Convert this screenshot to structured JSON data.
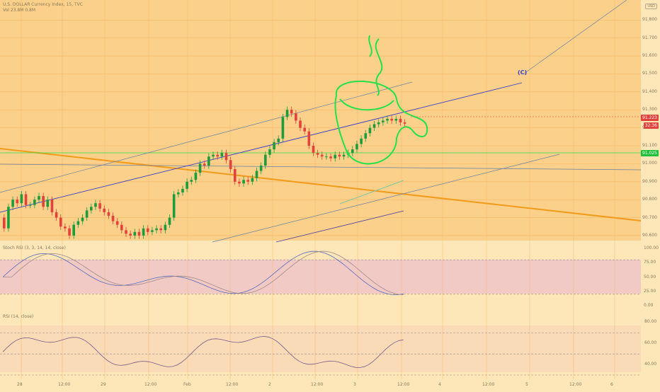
{
  "header": {
    "symbol_line": "U.S. DOLLAR Currency Index, 15, TVC",
    "volume_line": "Vol 23.8M 0.8M",
    "currency": "USD"
  },
  "price_axis": {
    "ticks": [
      "91.800",
      "91.700",
      "91.600",
      "91.500",
      "91.400",
      "91.300",
      "91.200",
      "91.100",
      "91.000",
      "90.900",
      "90.800",
      "90.700",
      "90.600"
    ],
    "current_price": "91.223",
    "countdown": "32:36",
    "level_marker": "91.025"
  },
  "stoch_pane": {
    "label": "Stoch RSI (3, 3, 14, 14, close)",
    "ticks": [
      "100.00",
      "75.00",
      "50.00",
      "25.00",
      "0.00"
    ]
  },
  "rsi_pane": {
    "label": "RSI (14, close)",
    "ticks": [
      "80.00",
      "60.00",
      "40.00"
    ]
  },
  "time_axis": {
    "ticks": [
      "28",
      "12:00",
      "29",
      "12:00",
      "Feb",
      "12:00",
      "2",
      "12:00",
      "3",
      "12:00",
      "4",
      "12:00",
      "5",
      "12:00",
      "6"
    ]
  },
  "annotations": {
    "wave_label": "(C)"
  },
  "colors": {
    "background": "#fde7b8",
    "panel": "#fbd08a",
    "up": "#1e9c3c",
    "down": "#e0423c",
    "highlight": "#26e04a",
    "current_tag": "#e0423c",
    "level_tag": "#22c03a",
    "trend_orange": "#f29a1a",
    "channel_blue": "#3b3bc9"
  },
  "chart_data": {
    "type": "candlestick",
    "x": [
      0,
      1,
      2,
      3,
      4,
      5,
      6,
      7,
      8,
      9,
      10,
      11,
      12,
      13,
      14,
      15,
      16,
      17,
      18,
      19,
      20,
      21,
      22,
      23,
      24,
      25,
      26,
      27,
      28,
      29,
      30,
      31,
      32,
      33,
      34,
      35,
      36,
      37,
      38,
      39,
      40,
      41,
      42,
      43,
      44,
      45,
      46,
      47,
      48,
      49,
      50,
      51,
      52,
      53,
      54,
      55,
      56,
      57,
      58,
      59,
      60,
      61,
      62,
      63,
      64,
      65,
      66,
      67,
      68,
      69,
      70,
      71,
      72,
      73,
      74,
      75,
      76,
      77,
      78,
      79,
      80,
      81,
      82,
      83,
      84,
      85,
      86,
      87,
      88,
      89,
      90,
      91,
      92
    ],
    "open": [
      90.7,
      90.64,
      90.76,
      90.8,
      90.78,
      90.83,
      90.77,
      90.77,
      90.8,
      90.82,
      90.76,
      90.8,
      90.73,
      90.7,
      90.65,
      90.64,
      90.6,
      90.66,
      90.68,
      90.7,
      90.74,
      90.76,
      90.78,
      90.75,
      90.73,
      90.71,
      90.68,
      90.66,
      90.63,
      90.61,
      90.6,
      90.62,
      90.6,
      90.64,
      90.62,
      90.63,
      90.64,
      90.63,
      90.66,
      90.7,
      90.83,
      90.84,
      90.86,
      90.9,
      90.91,
      90.95,
      91.0,
      90.99,
      91.04,
      91.05,
      91.04,
      91.06,
      91.02,
      90.97,
      90.9,
      90.89,
      90.91,
      90.9,
      90.92,
      90.96,
      90.99,
      91.05,
      91.08,
      91.12,
      91.14,
      91.26,
      91.3,
      91.28,
      91.24,
      91.2,
      91.18,
      91.1,
      91.06,
      91.05,
      91.04,
      91.04,
      91.03,
      91.05,
      91.04,
      91.05,
      91.06,
      91.08,
      91.11,
      91.14,
      91.17,
      91.2,
      91.22,
      91.23,
      91.24,
      91.25,
      91.24,
      91.25,
      91.23
    ],
    "close": [
      90.64,
      90.76,
      90.8,
      90.78,
      90.83,
      90.77,
      90.77,
      90.8,
      90.82,
      90.76,
      90.8,
      90.73,
      90.7,
      90.65,
      90.64,
      90.6,
      90.66,
      90.68,
      90.7,
      90.74,
      90.76,
      90.78,
      90.75,
      90.73,
      90.71,
      90.68,
      90.66,
      90.63,
      90.61,
      90.6,
      90.62,
      90.6,
      90.64,
      90.62,
      90.63,
      90.64,
      90.63,
      90.66,
      90.7,
      90.83,
      90.84,
      90.86,
      90.9,
      90.91,
      90.95,
      91.0,
      90.99,
      91.04,
      91.05,
      91.04,
      91.06,
      91.02,
      90.97,
      90.9,
      90.89,
      90.91,
      90.9,
      90.92,
      90.96,
      90.99,
      91.05,
      91.08,
      91.12,
      91.14,
      91.26,
      91.3,
      91.28,
      91.24,
      91.2,
      91.18,
      91.1,
      91.06,
      91.05,
      91.04,
      91.04,
      91.03,
      91.05,
      91.04,
      91.05,
      91.06,
      91.08,
      91.11,
      91.14,
      91.17,
      91.2,
      91.22,
      91.23,
      91.24,
      91.25,
      91.24,
      91.25,
      91.23,
      91.223
    ],
    "ylim": [
      90.58,
      91.88
    ]
  }
}
